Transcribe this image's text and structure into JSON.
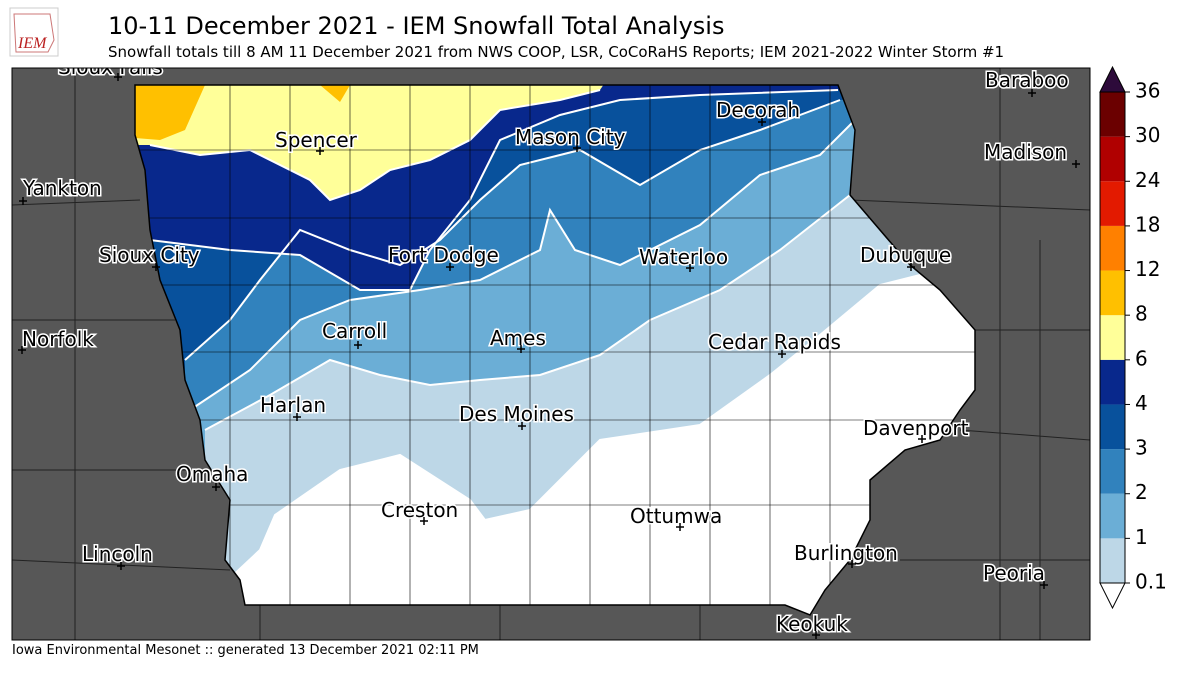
{
  "header": {
    "title": "10-11 December 2021 - IEM Snowfall Total Analysis",
    "subtitle": "Snowfall totals till 8 AM 11 December 2021 from NWS COOP, LSR, CoCoRaHS Reports; IEM 2021-2022 Winter Storm #1",
    "logo_text": "IEM"
  },
  "footer": "Iowa Environmental Mesonet :: generated 13 December 2021 02:11 PM",
  "cities": [
    "Sioux Falls",
    "Baraboo",
    "Decorah",
    "Spencer",
    "Mason City",
    "Madison",
    "Yankton",
    "Sioux City",
    "Fort Dodge",
    "Waterloo",
    "Dubuque",
    "Norfolk",
    "Carroll",
    "Ames",
    "Cedar Rapids",
    "Harlan",
    "Des Moines",
    "Davenport",
    "Omaha",
    "Creston",
    "Ottumwa",
    "Lincoln",
    "Burlington",
    "Peoria",
    "Keokuk"
  ],
  "legend": {
    "levels": [
      0.1,
      1,
      2,
      3,
      4,
      6,
      8,
      12,
      18,
      24,
      30,
      36
    ],
    "colors": [
      "#bdd7e7",
      "#6baed6",
      "#3182bd",
      "#08519c",
      "#08288c",
      "#ffff99",
      "#ffc000",
      "#ff8000",
      "#e31a00",
      "#b00000",
      "#6b0000"
    ],
    "over_color": "#2d0a3a",
    "under_color": "#ffffff"
  }
}
